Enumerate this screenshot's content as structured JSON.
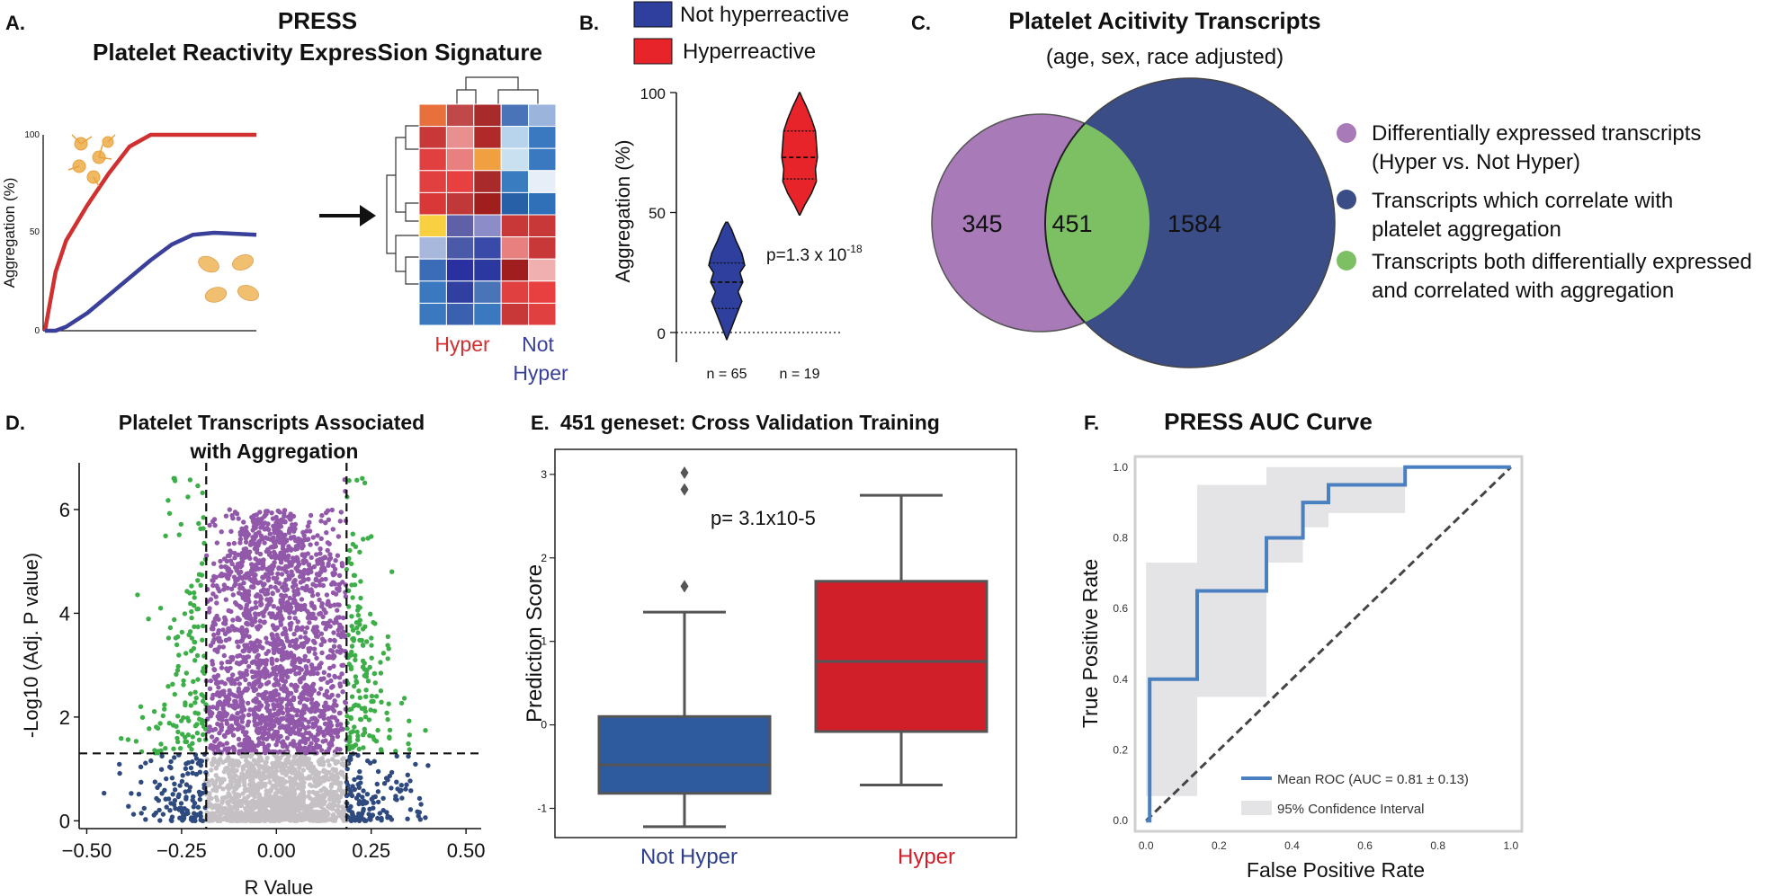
{
  "panels": {
    "A": {
      "letter": "A.",
      "title1": "PRESS",
      "title2": "Platelet Reactivity ExpresSion Signature",
      "ylabel": "Aggregation (%)",
      "yticks": [
        "0",
        "50",
        "100"
      ],
      "heat_label_hyper": "Hyper",
      "heat_label_not1": "Not",
      "heat_label_not2": "Hyper",
      "colors": {
        "hyper": "#d03030",
        "not_hyper": "#3a3f9a"
      }
    },
    "B": {
      "letter": "B.",
      "legend": [
        "Not hyperreactive",
        "Hyperreactive"
      ],
      "ylabel": "Aggregation (%)",
      "yticks": [
        "0",
        "50",
        "100"
      ],
      "pvalue_base": "p=1.3 x 10",
      "pvalue_exp": "-18",
      "n_labels": [
        "n = 65",
        "n = 19"
      ],
      "colors": {
        "not": "#2e3f9e",
        "hyper": "#e8242b"
      }
    },
    "C": {
      "letter": "C.",
      "title": "Platelet Acitivity Transcripts",
      "subtitle": "(age, sex, race adjusted)",
      "counts": [
        "345",
        "451",
        "1584"
      ],
      "legend": [
        {
          "line1": "Differentially expressed transcripts",
          "line2": "(Hyper vs. Not Hyper)",
          "color": "#a87bb8"
        },
        {
          "line1": "Transcripts which correlate with",
          "line2": "platelet aggregation",
          "color": "#3a4d86"
        },
        {
          "line1": "Transcripts both differentially expressed",
          "line2": "and correlated with aggregation",
          "color": "#7dc063"
        }
      ]
    },
    "D": {
      "letter": "D.",
      "title1": "Platelet Transcripts Associated",
      "title2": "with Aggregation",
      "xlabel": "R Value",
      "ylabel": "-Log10 (Adj. P value)",
      "colors": {
        "green": "#3daf48",
        "purple": "#9258aa",
        "blue": "#2f4a7f",
        "grey": "#c4c0c4"
      }
    },
    "E": {
      "letter": "E.",
      "title": "451 geneset: Cross Validation Training",
      "ylabel": "Prediction Score",
      "pvalue": "p= 3.1x10-5",
      "groups": [
        {
          "label": "Not Hyper",
          "color": "#2e5a9e",
          "label_color": "#2e3f8a"
        },
        {
          "label": "Hyper",
          "color": "#d01f29",
          "label_color": "#d01f29"
        }
      ]
    },
    "F": {
      "letter": "F.",
      "title": "PRESS AUC Curve",
      "xlabel": "False Positive Rate",
      "ylabel": "True Positive Rate",
      "legend_roc": "Mean ROC (AUC = 0.81 ± 0.13)",
      "legend_ci": "95% Confidence Interval",
      "colors": {
        "roc": "#4a80c0",
        "ci": "#e4e4e6",
        "chance": "#444444"
      }
    }
  },
  "chart_data": [
    {
      "panel": "A",
      "type": "line",
      "title": "PRESS",
      "xlabel": "",
      "ylabel": "Aggregation (%)",
      "ylim": [
        0,
        100
      ],
      "series": [
        {
          "name": "Hyper",
          "x": [
            0,
            0.02,
            0.05,
            0.1,
            0.2,
            0.3,
            0.4,
            0.5,
            0.6,
            0.7,
            1.0
          ],
          "y": [
            0,
            12,
            30,
            46,
            64,
            80,
            94,
            100,
            100,
            100,
            100
          ]
        },
        {
          "name": "Not Hyper",
          "x": [
            0,
            0.05,
            0.1,
            0.2,
            0.3,
            0.4,
            0.5,
            0.6,
            0.7,
            0.8,
            1.0
          ],
          "y": [
            0,
            0,
            2,
            9,
            18,
            27,
            36,
            44,
            49,
            50,
            49
          ]
        }
      ]
    },
    {
      "panel": "B",
      "type": "violin",
      "categories": [
        "Not hyperreactive",
        "Hyperreactive"
      ],
      "ylabel": "Aggregation (%)",
      "ylim": [
        0,
        100
      ],
      "series": [
        {
          "name": "Not hyperreactive",
          "min": -3,
          "max": 46,
          "quartiles": [
            10,
            21,
            29
          ],
          "profile": [
            [
              -3,
              0
            ],
            [
              2,
              0.25
            ],
            [
              8,
              0.55
            ],
            [
              13,
              0.8
            ],
            [
              17,
              0.6
            ],
            [
              21,
              0.85
            ],
            [
              25,
              0.7
            ],
            [
              28,
              0.95
            ],
            [
              33,
              0.8
            ],
            [
              38,
              0.5
            ],
            [
              43,
              0.25
            ],
            [
              46,
              0.05
            ]
          ]
        },
        {
          "name": "Hyperreactive",
          "min": 49,
          "max": 100,
          "quartiles": [
            64,
            73,
            84
          ],
          "profile": [
            [
              49,
              0.02
            ],
            [
              53,
              0.25
            ],
            [
              58,
              0.6
            ],
            [
              63,
              0.85
            ],
            [
              68,
              0.8
            ],
            [
              73,
              0.9
            ],
            [
              79,
              0.85
            ],
            [
              84,
              0.8
            ],
            [
              89,
              0.6
            ],
            [
              94,
              0.35
            ],
            [
              98,
              0.12
            ],
            [
              100,
              0.02
            ]
          ]
        }
      ]
    },
    {
      "panel": "D",
      "type": "scatter",
      "title": "Platelet Transcripts Associated with Aggregation",
      "xlabel": "R Value",
      "ylabel": "-Log10 (Adj. P value)",
      "xlim": [
        -0.52,
        0.54
      ],
      "ylim": [
        -0.15,
        6.9
      ],
      "xticks": [
        -0.5,
        -0.25,
        0.0,
        0.25,
        0.5
      ],
      "xtick_labels": [
        "−0.50",
        "−0.25",
        "0.00",
        "0.25",
        "0.50"
      ],
      "yticks": [
        0,
        2,
        4,
        6
      ],
      "thresholds": {
        "r": [
          -0.185,
          0.185
        ],
        "neglog10p": 1.3
      }
    },
    {
      "panel": "E",
      "type": "box",
      "title": "451 geneset: Cross Validation Training",
      "ylabel": "Prediction Score",
      "ylim": [
        -1.35,
        3.3
      ],
      "yticks": [
        -1,
        0,
        1,
        2,
        3
      ],
      "categories": [
        "Not Hyper",
        "Hyper"
      ],
      "series": [
        {
          "name": "Not Hyper",
          "whisker_low": -1.22,
          "q1": -0.82,
          "median": -0.48,
          "q3": 0.1,
          "whisker_high": 1.35,
          "outliers": [
            1.66,
            2.82,
            3.02
          ]
        },
        {
          "name": "Hyper",
          "whisker_low": -0.72,
          "q1": -0.08,
          "median": 0.76,
          "q3": 1.72,
          "whisker_high": 2.75,
          "outliers": []
        }
      ]
    },
    {
      "panel": "F",
      "type": "line",
      "title": "PRESS AUC Curve",
      "xlabel": "False Positive Rate",
      "ylabel": "True Positive Rate",
      "xlim": [
        -0.03,
        1.03
      ],
      "ylim": [
        -0.03,
        1.03
      ],
      "xticks": [
        0.0,
        0.2,
        0.4,
        0.6,
        0.8,
        1.0
      ],
      "yticks": [
        0.0,
        0.2,
        0.4,
        0.6,
        0.8,
        1.0
      ],
      "series": [
        {
          "name": "Mean ROC (AUC = 0.81 ± 0.13)",
          "x": [
            0,
            0.01,
            0.01,
            0.14,
            0.14,
            0.33,
            0.33,
            0.43,
            0.43,
            0.5,
            0.5,
            0.71,
            0.71,
            1.0
          ],
          "y": [
            0,
            0,
            0.4,
            0.4,
            0.65,
            0.65,
            0.8,
            0.8,
            0.9,
            0.9,
            0.95,
            0.95,
            1.0,
            1.0
          ]
        },
        {
          "name": "Chance",
          "x": [
            0,
            1
          ],
          "y": [
            0,
            1
          ]
        }
      ],
      "ci_upper": {
        "x": [
          0,
          0.0,
          0.14,
          0.14,
          0.33,
          0.33,
          0.43,
          0.43,
          0.71,
          0.71,
          1.0
        ],
        "y": [
          0,
          0.73,
          0.73,
          0.95,
          0.95,
          1.0,
          1.0,
          1.0,
          1.0,
          1.0,
          1.0
        ]
      },
      "ci_lower": {
        "x": [
          0,
          0.14,
          0.14,
          0.33,
          0.33,
          0.43,
          0.43,
          0.5,
          0.5,
          0.71,
          0.71,
          1.0
        ],
        "y": [
          0.07,
          0.07,
          0.35,
          0.35,
          0.73,
          0.73,
          0.83,
          0.83,
          0.87,
          0.87,
          1.0,
          1.0
        ]
      }
    }
  ]
}
